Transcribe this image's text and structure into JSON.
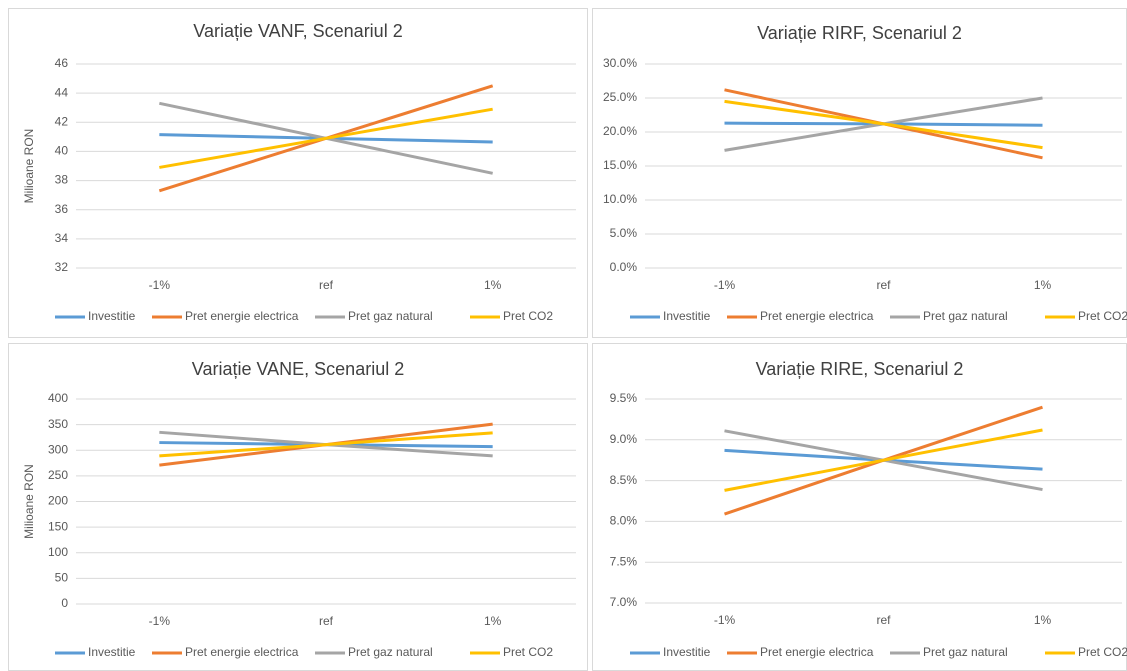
{
  "chart_data": [
    {
      "type": "line",
      "title": "Variație VANF, Scenariul 2",
      "ylabel": "Milioane RON",
      "categories": [
        "-1%",
        "ref",
        "1%"
      ],
      "ylim": [
        32,
        46
      ],
      "yticks": [
        32,
        34,
        36,
        38,
        40,
        42,
        44,
        46
      ],
      "grid": true,
      "series": [
        {
          "name": "Investitie",
          "color": "#5b9bd5",
          "values": [
            41.15,
            40.9,
            40.65
          ]
        },
        {
          "name": "Pret energie electrica",
          "color": "#ed7d31",
          "values": [
            37.3,
            40.9,
            44.5
          ]
        },
        {
          "name": "Pret gaz natural",
          "color": "#a5a5a5",
          "values": [
            43.3,
            40.9,
            38.5
          ]
        },
        {
          "name": "Pret CO2",
          "color": "#ffc000",
          "values": [
            38.9,
            40.9,
            42.9
          ]
        }
      ]
    },
    {
      "type": "line",
      "title": "Variație RIRF, Scenariul 2",
      "categories": [
        "-1%",
        "ref",
        "1%"
      ],
      "ylim": [
        0,
        30
      ],
      "yticks": [
        {
          "value": 0,
          "label": "0.0%"
        },
        {
          "value": 5,
          "label": "5.0%"
        },
        {
          "value": 10,
          "label": "10.0%"
        },
        {
          "value": 15,
          "label": "15.0%"
        },
        {
          "value": 20,
          "label": "20.0%"
        },
        {
          "value": 25,
          "label": "25.0%"
        },
        {
          "value": 30,
          "label": "30.0%"
        }
      ],
      "grid": true,
      "series": [
        {
          "name": "Investitie",
          "color": "#5b9bd5",
          "values": [
            21.3,
            21.2,
            21.0
          ]
        },
        {
          "name": "Pret energie electrica",
          "color": "#ed7d31",
          "values": [
            26.2,
            21.2,
            16.2
          ]
        },
        {
          "name": "Pret gaz natural",
          "color": "#a5a5a5",
          "values": [
            17.3,
            21.2,
            25.0
          ]
        },
        {
          "name": "Pret CO2",
          "color": "#ffc000",
          "values": [
            24.5,
            21.2,
            17.7
          ]
        }
      ]
    },
    {
      "type": "line",
      "title": "Variație VANE, Scenariul 2",
      "ylabel": "Milioane RON",
      "categories": [
        "-1%",
        "ref",
        "1%"
      ],
      "ylim": [
        0,
        400
      ],
      "yticks": [
        0,
        50,
        100,
        150,
        200,
        250,
        300,
        350,
        400
      ],
      "grid": true,
      "series": [
        {
          "name": "Investitie",
          "color": "#5b9bd5",
          "values": [
            315,
            311,
            307
          ]
        },
        {
          "name": "Pret energie electrica",
          "color": "#ed7d31",
          "values": [
            271,
            311,
            351
          ]
        },
        {
          "name": "Pret gaz natural",
          "color": "#a5a5a5",
          "values": [
            335,
            311,
            289
          ]
        },
        {
          "name": "Pret CO2",
          "color": "#ffc000",
          "values": [
            289,
            311,
            334
          ]
        }
      ]
    },
    {
      "type": "line",
      "title": "Variație RIRE, Scenariul 2",
      "categories": [
        "-1%",
        "ref",
        "1%"
      ],
      "ylim": [
        7,
        9.5
      ],
      "yticks": [
        {
          "value": 7,
          "label": "7.0%"
        },
        {
          "value": 7.5,
          "label": "7.5%"
        },
        {
          "value": 8,
          "label": "8.0%"
        },
        {
          "value": 8.5,
          "label": "8.5%"
        },
        {
          "value": 9,
          "label": "9.0%"
        },
        {
          "value": 9.5,
          "label": "9.5%"
        }
      ],
      "grid": true,
      "series": [
        {
          "name": "Investitie",
          "color": "#5b9bd5",
          "values": [
            8.87,
            8.75,
            8.64
          ]
        },
        {
          "name": "Pret energie electrica",
          "color": "#ed7d31",
          "values": [
            8.09,
            8.75,
            9.4
          ]
        },
        {
          "name": "Pret gaz natural",
          "color": "#a5a5a5",
          "values": [
            9.11,
            8.75,
            8.39
          ]
        },
        {
          "name": "Pret CO2",
          "color": "#ffc000",
          "values": [
            8.38,
            8.75,
            9.12
          ]
        }
      ]
    }
  ]
}
